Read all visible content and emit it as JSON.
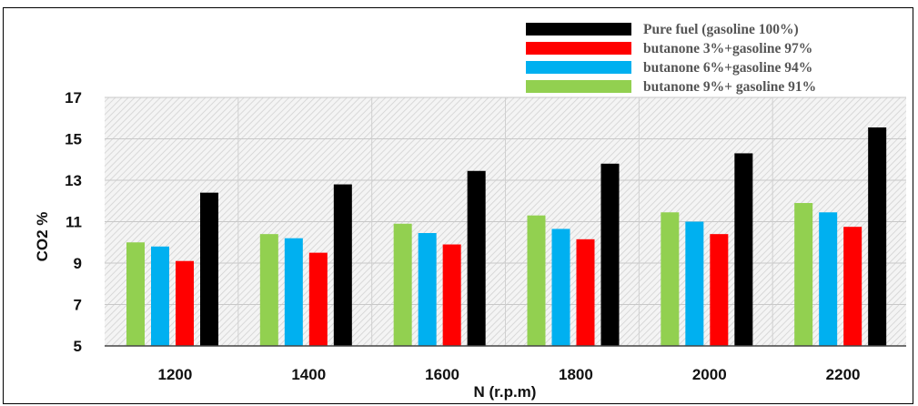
{
  "chart_data": {
    "type": "bar",
    "categories": [
      "1200",
      "1400",
      "1600",
      "1800",
      "2000",
      "2200"
    ],
    "series": [
      {
        "name": "Pure fuel (gasoline 100%)",
        "color": "#000000",
        "values": [
          12.4,
          12.8,
          13.45,
          13.8,
          14.3,
          15.55
        ]
      },
      {
        "name": "butanone 3%+gasoline 97%",
        "color": "#ff0000",
        "values": [
          9.1,
          9.5,
          9.9,
          10.15,
          10.4,
          10.75
        ]
      },
      {
        "name": "butanone 6%+gasoline 94%",
        "color": "#00b0f0",
        "values": [
          9.8,
          10.2,
          10.45,
          10.65,
          11.0,
          11.45
        ]
      },
      {
        "name": "butanone 9%+ gasoline 91%",
        "color": "#92d050",
        "values": [
          10.0,
          10.4,
          10.9,
          11.3,
          11.45,
          11.9
        ]
      }
    ],
    "bar_order_within_group": [
      "butanone 9%+ gasoline 91%",
      "butanone 6%+gasoline 94%",
      "butanone 3%+gasoline 97%",
      "Pure fuel (gasoline 100%)"
    ],
    "xlabel": "N (r.p.m)",
    "ylabel": "CO2 %",
    "ylim": [
      5,
      17
    ],
    "yticks": [
      "5",
      "7",
      "9",
      "11",
      "13",
      "15",
      "17"
    ],
    "grid": true,
    "legend_position": "top-right"
  }
}
